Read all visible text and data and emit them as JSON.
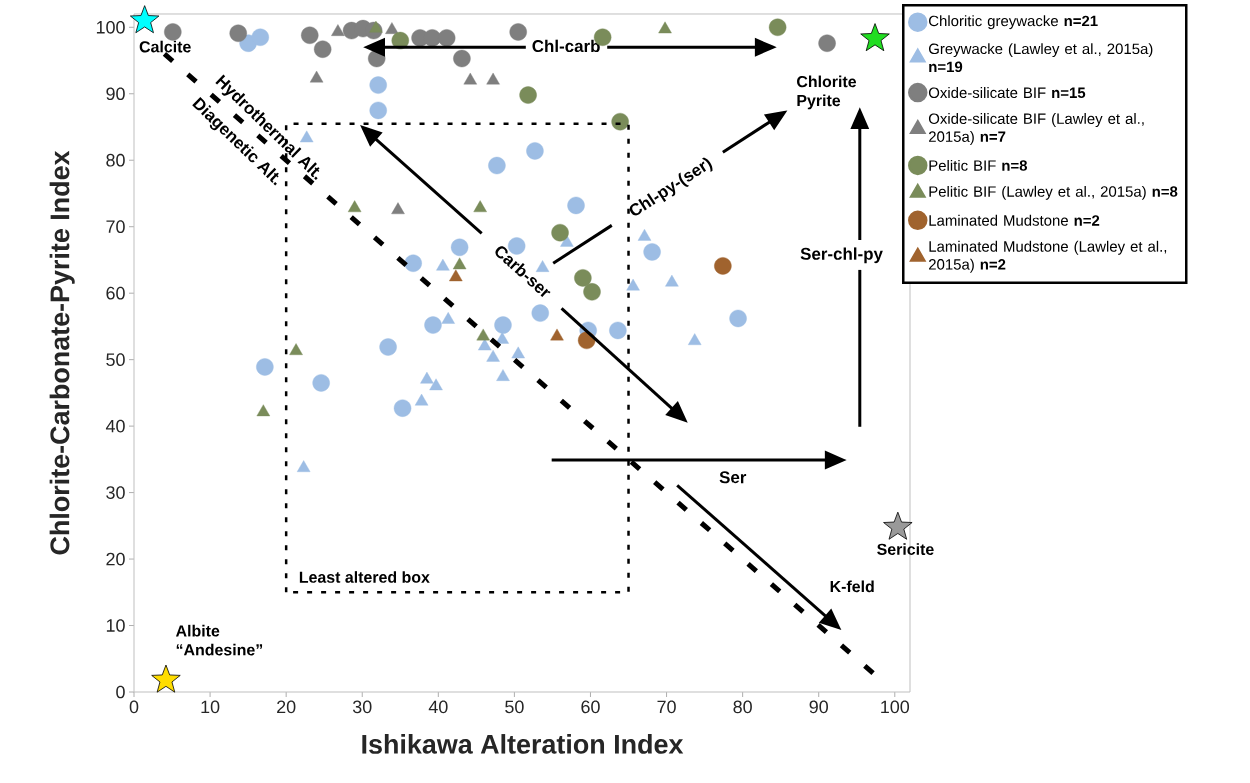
{
  "chart_data": {
    "type": "scatter",
    "xlabel": "Ishikawa Alteration Index",
    "ylabel": "Chlorite-Carbonate-Pyrite Index",
    "xlim": [
      0,
      102
    ],
    "ylim": [
      0,
      102
    ],
    "xticks": [
      0,
      10,
      20,
      30,
      40,
      50,
      60,
      70,
      80,
      90,
      100
    ],
    "yticks": [
      0,
      10,
      20,
      30,
      40,
      50,
      60,
      70,
      80,
      90,
      100
    ],
    "legend": "right",
    "series": [
      {
        "name": "Chloritic greywacke **n=21**",
        "color": "#9dbde4",
        "marker": "circle",
        "x": [
          15.0,
          16.6,
          32.1,
          32.1,
          47.7,
          52.7,
          58.1,
          42.8,
          50.3,
          36.7,
          68.1,
          39.3,
          48.5,
          33.4,
          17.2,
          24.6,
          35.3,
          79.4,
          53.4,
          63.6,
          59.7
        ],
        "values": [
          97.6,
          98.5,
          91.3,
          87.5,
          79.2,
          81.4,
          73.2,
          66.9,
          67.1,
          64.5,
          66.2,
          55.2,
          55.2,
          51.9,
          48.9,
          46.5,
          42.7,
          56.2,
          57.0,
          54.4,
          54.4
        ]
      },
      {
        "name": "Greywacke (Lawley et al., 2015a) **n=19**",
        "color": "#9dbde4",
        "marker": "triangle",
        "x": [
          22.7,
          40.6,
          41.3,
          38.5,
          39.7,
          37.8,
          22.3,
          46.1,
          47.2,
          48.4,
          48.5,
          50.5,
          53.7,
          65.6,
          70.7,
          73.7,
          67.1,
          56.9
        ],
        "values": [
          83.3,
          64.0,
          56.0,
          47.0,
          46.0,
          43.7,
          33.7,
          52.0,
          50.3,
          53.0,
          47.4,
          50.8,
          63.8,
          61.0,
          61.6,
          52.8,
          68.5,
          67.6
        ]
      },
      {
        "name": "Oxide-silicate BIF **n=15**",
        "color": "#7f7f7f",
        "marker": "circle",
        "x": [
          5.1,
          13.7,
          23.1,
          24.8,
          28.6,
          30.1,
          31.5,
          31.9,
          37.6,
          39.2,
          41.1,
          43.1,
          50.5,
          91.1
        ],
        "values": [
          99.3,
          99.1,
          98.8,
          96.7,
          99.5,
          99.8,
          99.5,
          95.3,
          98.4,
          98.4,
          98.4,
          95.3,
          99.3,
          97.6
        ]
      },
      {
        "name": "Oxide-silicate BIF (Lawley et al., 2015a) **n=7**",
        "color": "#7f7f7f",
        "marker": "triangle",
        "x": [
          26.8,
          33.9,
          24.0,
          44.2,
          47.2,
          34.7
        ],
        "values": [
          99.3,
          99.6,
          92.3,
          92.0,
          92.0,
          72.5
        ]
      },
      {
        "name": "Pelitic BIF **n=8**",
        "color": "#7a8c5a",
        "marker": "circle",
        "x": [
          35.0,
          51.8,
          61.6,
          84.6,
          63.9,
          56.0,
          59.0,
          60.2
        ],
        "values": [
          98.0,
          89.8,
          98.5,
          100.0,
          85.8,
          69.1,
          62.3,
          60.2
        ]
      },
      {
        "name": "Pelitic BIF (Lawley et al., 2015a) **n=8**",
        "color": "#7a8c5a",
        "marker": "triangle",
        "x": [
          31.8,
          29.0,
          45.5,
          42.8,
          21.3,
          17.0,
          45.9,
          69.8
        ],
        "values": [
          99.8,
          72.8,
          72.8,
          64.2,
          51.3,
          42.1,
          53.5,
          99.7
        ]
      },
      {
        "name": "Laminated Mudstone **n=2**",
        "color": "#a0632e",
        "marker": "circle",
        "x": [
          77.4,
          59.5
        ],
        "values": [
          64.1,
          52.9
        ]
      },
      {
        "name": "Laminated Mudstone (Lawley et al., 2015a) **n=2**",
        "color": "#a0632e",
        "marker": "triangle",
        "x": [
          42.3,
          55.6
        ],
        "values": [
          62.4,
          53.5
        ]
      },
      {
        "color": "#00ffff",
        "marker": "star",
        "x": [
          1.4
        ],
        "values": [
          101.0
        ]
      },
      {
        "color": "#22dd22",
        "marker": "star",
        "x": [
          97.4
        ],
        "values": [
          98.3
        ]
      },
      {
        "color": "#999999",
        "marker": "star",
        "x": [
          100.4
        ],
        "values": [
          24.8
        ]
      },
      {
        "color": "#ffdd00",
        "marker": "star",
        "x": [
          4.2
        ],
        "values": [
          1.8
        ]
      }
    ],
    "annotations": [
      "Calcite",
      "Chlorite Pyrite",
      "Sericite",
      "Albite “Andesine”",
      "Chl-carb",
      "Hydrothermal Alt.",
      "Diagenetic Alt.",
      "Carb-ser",
      "Chl-py-(ser)",
      "Ser",
      "Ser-chl-py",
      "K-feld",
      "Least altered box"
    ]
  }
}
